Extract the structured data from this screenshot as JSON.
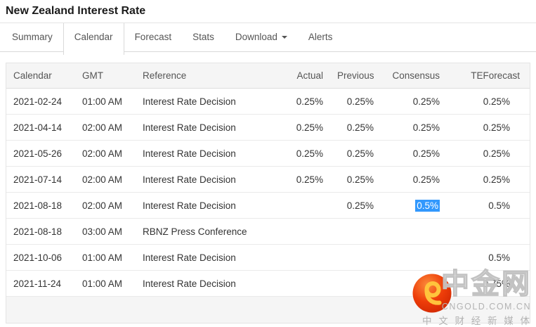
{
  "page": {
    "title": "New Zealand Interest Rate"
  },
  "tabs": [
    {
      "label": "Summary",
      "active": false,
      "dropdown": false
    },
    {
      "label": "Calendar",
      "active": true,
      "dropdown": false
    },
    {
      "label": "Forecast",
      "active": false,
      "dropdown": false
    },
    {
      "label": "Stats",
      "active": false,
      "dropdown": false
    },
    {
      "label": "Download",
      "active": false,
      "dropdown": true
    },
    {
      "label": "Alerts",
      "active": false,
      "dropdown": false
    }
  ],
  "table": {
    "columns": [
      "Calendar",
      "GMT",
      "Reference",
      "Actual",
      "Previous",
      "Consensus",
      "TEForecast"
    ],
    "rows": [
      {
        "date": "2021-02-24",
        "gmt": "01:00 AM",
        "reference": "Interest Rate Decision",
        "actual": "0.25%",
        "previous": "0.25%",
        "consensus": "0.25%",
        "teforecast": "0.25%",
        "consensus_selected": false
      },
      {
        "date": "2021-04-14",
        "gmt": "02:00 AM",
        "reference": "Interest Rate Decision",
        "actual": "0.25%",
        "previous": "0.25%",
        "consensus": "0.25%",
        "teforecast": "0.25%",
        "consensus_selected": false
      },
      {
        "date": "2021-05-26",
        "gmt": "02:00 AM",
        "reference": "Interest Rate Decision",
        "actual": "0.25%",
        "previous": "0.25%",
        "consensus": "0.25%",
        "teforecast": "0.25%",
        "consensus_selected": false
      },
      {
        "date": "2021-07-14",
        "gmt": "02:00 AM",
        "reference": "Interest Rate Decision",
        "actual": "0.25%",
        "previous": "0.25%",
        "consensus": "0.25%",
        "teforecast": "0.25%",
        "consensus_selected": false
      },
      {
        "date": "2021-08-18",
        "gmt": "02:00 AM",
        "reference": "Interest Rate Decision",
        "actual": "",
        "previous": "0.25%",
        "consensus": "0.5%",
        "teforecast": "0.5%",
        "consensus_selected": true
      },
      {
        "date": "2021-08-18",
        "gmt": "03:00 AM",
        "reference": "RBNZ Press Conference",
        "actual": "",
        "previous": "",
        "consensus": "",
        "teforecast": "",
        "consensus_selected": false
      },
      {
        "date": "2021-10-06",
        "gmt": "01:00 AM",
        "reference": "Interest Rate Decision",
        "actual": "",
        "previous": "",
        "consensus": "",
        "teforecast": "0.5%",
        "consensus_selected": false
      },
      {
        "date": "2021-11-24",
        "gmt": "01:00 AM",
        "reference": "Interest Rate Decision",
        "actual": "",
        "previous": "",
        "consensus": "",
        "teforecast": "0.75%",
        "consensus_selected": false
      }
    ]
  },
  "watermark": {
    "logo": "cngold-logo",
    "brand": "中金网",
    "domain": "CNGOLD.COM.CN",
    "tagline": "中 文 财 经 新 媒 体"
  },
  "colors": {
    "selection_blue": "#3298fd",
    "header_bg": "#f5f5f5",
    "border": "#d9d9d9",
    "row_border": "#eaeaea",
    "text": "#333333",
    "muted_text": "#555555",
    "logo_red": "#ee3d09",
    "logo_gold": "#ffc43c",
    "watermark_gray": "#b3b3b3"
  }
}
